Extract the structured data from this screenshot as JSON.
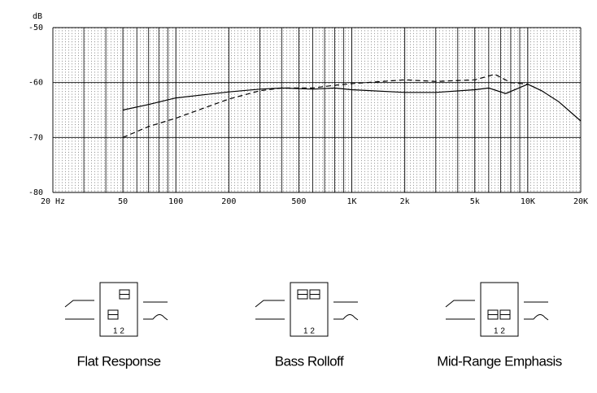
{
  "chart_data": {
    "type": "line",
    "y_label": "dB",
    "xscale": "log",
    "xlim": [
      20,
      20000
    ],
    "ylim": [
      -80,
      -50
    ],
    "xticks": [
      {
        "value": 20,
        "label": "20 Hz"
      },
      50,
      100,
      200,
      500,
      {
        "value": 1000,
        "label": "1K"
      },
      {
        "value": 2000,
        "label": "2k"
      },
      {
        "value": 5000,
        "label": "5k"
      },
      {
        "value": 10000,
        "label": "10K"
      },
      {
        "value": 20000,
        "label": "20K"
      }
    ],
    "yticks": [
      -50,
      -60,
      -70,
      -80
    ],
    "xgrid": [
      30,
      40,
      60,
      70,
      80,
      90,
      300,
      400,
      600,
      700,
      800,
      900,
      3000,
      4000,
      6000,
      7000,
      8000,
      9000
    ],
    "series": [
      {
        "color": "#000000",
        "style": "solid",
        "x": [
          50,
          70,
          100,
          200,
          300,
          400,
          600,
          800,
          1000,
          2000,
          3000,
          5000,
          6000,
          7500,
          10000,
          12000,
          15000,
          20000
        ],
        "values": [
          -65,
          -64,
          -62.8,
          -61.7,
          -61.2,
          -61,
          -61.2,
          -61,
          -61.3,
          -61.8,
          -61.8,
          -61.3,
          -61,
          -62,
          -60.3,
          -61.5,
          -63.5,
          -67
        ]
      },
      {
        "color": "#000000",
        "style": "dashed",
        "x": [
          50,
          70,
          100,
          200,
          300,
          400,
          600,
          800,
          1000,
          2000,
          3000,
          5000,
          6500,
          8000,
          10000
        ],
        "values": [
          -70,
          -68,
          -66.5,
          -63,
          -61.5,
          -61,
          -61,
          -60.5,
          -60.2,
          -59.5,
          -59.8,
          -59.5,
          -58.5,
          -60,
          -60.3
        ]
      }
    ]
  },
  "diagrams": [
    {
      "caption": "Flat Response",
      "positions": "1 2"
    },
    {
      "caption": "Bass Rolloff",
      "positions": "1 2"
    },
    {
      "caption": "Mid-Range Emphasis",
      "positions": "1 2"
    }
  ]
}
